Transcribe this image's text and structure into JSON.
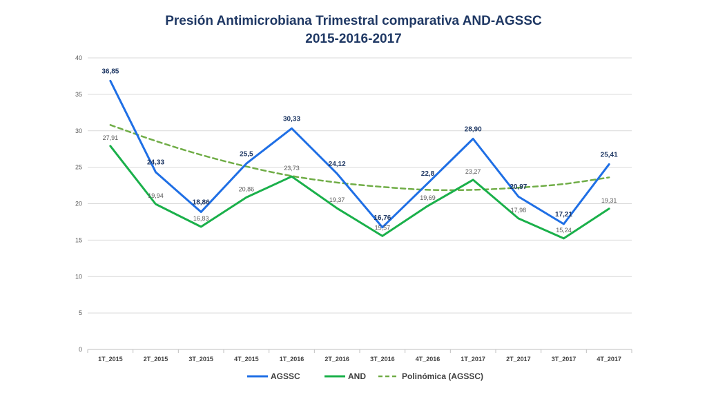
{
  "chart_data": {
    "type": "line",
    "title": "Presión Antimicrobiana Trimestral comparativa AND-AGSSC",
    "subtitle": "2015-2016-2017",
    "categories": [
      "1T_2015",
      "2T_2015",
      "3T_2015",
      "4T_2015",
      "1T_2016",
      "2T_2016",
      "3T_2016",
      "4T_2016",
      "1T_2017",
      "2T_2017",
      "3T_2017",
      "4T_2017"
    ],
    "ylim": [
      0,
      40
    ],
    "yticks": [
      0,
      5,
      10,
      15,
      20,
      25,
      30,
      35,
      40
    ],
    "grid": true,
    "legend_position": "bottom",
    "series": [
      {
        "name": "AGSSC",
        "color": "#1f6fe5",
        "style": "solid",
        "values": [
          36.85,
          24.33,
          18.86,
          25.5,
          30.33,
          24.12,
          16.76,
          22.8,
          28.9,
          20.97,
          17.21,
          25.41
        ],
        "labels": [
          "36,85",
          "24,33",
          "18,86",
          "25,5",
          "30,33",
          "24,12",
          "16,76",
          "22,8",
          "28,90",
          "20,97",
          "17,21",
          "25,41"
        ]
      },
      {
        "name": "AND",
        "color": "#1ab04a",
        "style": "solid",
        "values": [
          27.91,
          19.94,
          16.83,
          20.86,
          23.73,
          19.37,
          15.57,
          19.69,
          23.27,
          17.98,
          15.24,
          19.31
        ],
        "labels": [
          "27,91",
          "19,94",
          "16,83",
          "20,86",
          "23,73",
          "19,37",
          "15,57",
          "19,69",
          "23,27",
          "17,98",
          "15,24",
          "19,31"
        ]
      },
      {
        "name": "Polinómica (AGSSC)",
        "color": "#70ad47",
        "style": "dashed",
        "values": [
          30.8,
          28.6,
          26.7,
          25.1,
          23.8,
          22.9,
          22.3,
          21.9,
          21.9,
          22.2,
          22.7,
          23.6
        ]
      }
    ]
  }
}
